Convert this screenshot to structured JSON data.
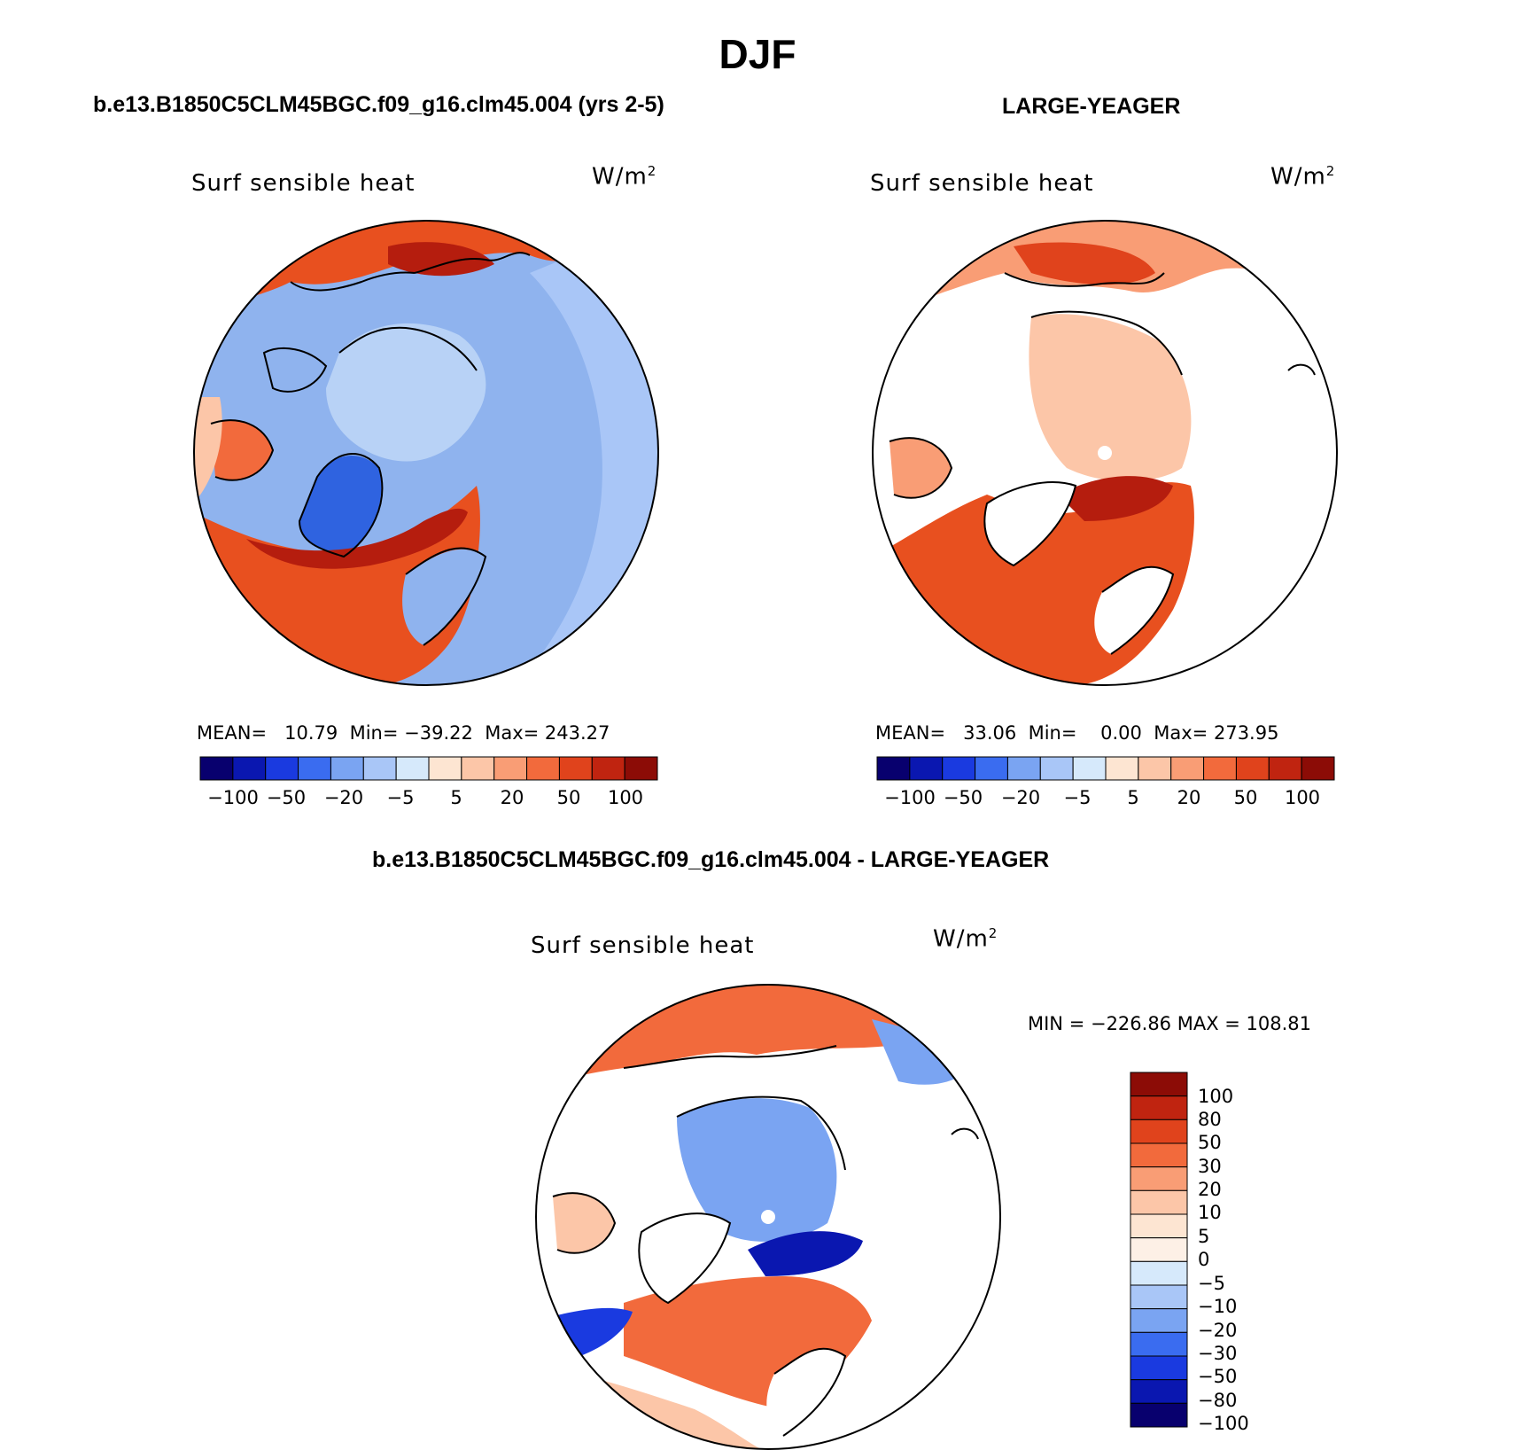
{
  "page_title": "DJF",
  "panels": [
    {
      "case_title": "b.e13.B1850C5CLM45BGC.f09_g16.clm45.004 (yrs 2-5)",
      "variable": "Surf sensible heat",
      "units_base": "W/m",
      "units_exp": "2",
      "mean_label": "MEAN=",
      "mean": "10.79",
      "min_label": "Min=",
      "min": "−39.22",
      "max_label": "Max=",
      "max": "243.27",
      "colorbar_ticks": [
        "−100",
        "−50",
        "−20",
        "−5",
        "5",
        "20",
        "50",
        "100"
      ]
    },
    {
      "case_title": "LARGE-YEAGER",
      "variable": "Surf sensible heat",
      "units_base": "W/m",
      "units_exp": "2",
      "mean_label": "MEAN=",
      "mean": "33.06",
      "min_label": "Min=",
      "min": "0.00",
      "max_label": "Max=",
      "max": "273.95",
      "colorbar_ticks": [
        "−100",
        "−50",
        "−20",
        "−5",
        "5",
        "20",
        "50",
        "100"
      ]
    },
    {
      "case_title": "b.e13.B1850C5CLM45BGC.f09_g16.clm45.004 - LARGE-YEAGER",
      "variable": "Surf sensible heat",
      "units_base": "W/m",
      "units_exp": "2",
      "minmax_label": "MIN = −226.86 MAX = 108.81",
      "colorbar_ticks": [
        "100",
        "80",
        "50",
        "30",
        "20",
        "10",
        "5",
        "0",
        "−5",
        "−10",
        "−20",
        "−30",
        "−50",
        "−80",
        "−100"
      ]
    }
  ],
  "colors": {
    "scale": [
      "#08006e",
      "#0a17b0",
      "#1a3ae0",
      "#3a6cf0",
      "#7aa4f2",
      "#a9c6f7",
      "#d6e9fb",
      "#fde5d2",
      "#fcc6a8",
      "#f99d75",
      "#f26a3c",
      "#e0431c",
      "#c02410",
      "#8c0c06"
    ],
    "ocean_blue": "#8fb3ee",
    "ice_blue": "#b8d2f6",
    "greenland_blue": "#2f63e0",
    "warm_red": "#e8501f",
    "deep_red": "#b51d0e",
    "pale_peach": "#f7b394",
    "coast": "#000000"
  }
}
